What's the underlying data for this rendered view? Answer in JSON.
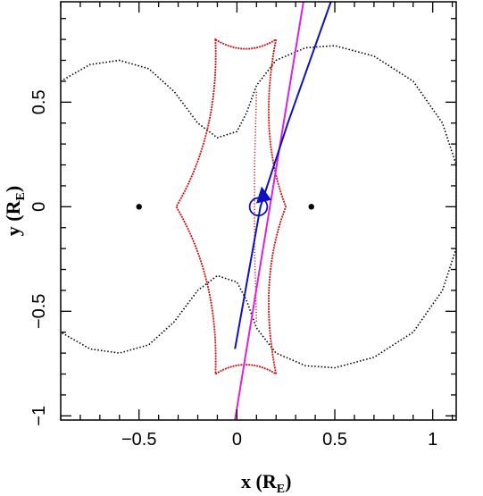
{
  "chart_data": {
    "type": "line",
    "title": "",
    "xlabel": "x (R_E)",
    "ylabel": "y (R_E)",
    "xlabel_parts": {
      "main": "x (R",
      "sub": "E",
      "close": ")"
    },
    "ylabel_parts": {
      "main": "y (R",
      "sub": "E",
      "close": ")"
    },
    "xlim": [
      -0.9,
      1.12
    ],
    "ylim": [
      -1.02,
      0.98
    ],
    "x_ticks": [
      -0.5,
      0,
      0.5,
      1
    ],
    "x_tick_labels": [
      "−0.5",
      "0",
      "0.5",
      "1"
    ],
    "y_ticks": [
      -1,
      -0.5,
      0,
      0.5
    ],
    "y_tick_labels": [
      "−1",
      "−0.5",
      "0",
      "0.5"
    ],
    "grid": false,
    "legend": "none",
    "lenses": [
      {
        "x": -0.5,
        "y": 0.0
      },
      {
        "x": 0.38,
        "y": 0.0
      }
    ],
    "source": {
      "x": 0.11,
      "y": 0.0,
      "radius": 0.045
    },
    "caustic": {
      "color": "#d01010",
      "cusps": [
        [
          -0.31,
          0.0
        ],
        [
          0.25,
          0.0
        ],
        [
          -0.11,
          0.8
        ],
        [
          0.2,
          0.8
        ],
        [
          -0.11,
          -0.8
        ],
        [
          0.2,
          -0.8
        ]
      ]
    },
    "critical_curve": {
      "color": "#000000",
      "outer_loop": [
        [
          -0.9,
          0.6
        ],
        [
          -0.75,
          0.68
        ],
        [
          -0.6,
          0.7
        ],
        [
          -0.45,
          0.66
        ],
        [
          -0.32,
          0.55
        ],
        [
          -0.2,
          0.4
        ],
        [
          -0.1,
          0.33
        ],
        [
          0.0,
          0.36
        ],
        [
          0.05,
          0.45
        ],
        [
          0.1,
          0.58
        ],
        [
          0.2,
          0.7
        ],
        [
          0.35,
          0.76
        ],
        [
          0.5,
          0.77
        ],
        [
          0.7,
          0.72
        ],
        [
          0.9,
          0.6
        ],
        [
          1.05,
          0.4
        ],
        [
          1.12,
          0.2
        ],
        [
          1.12,
          -0.2
        ],
        [
          1.05,
          -0.4
        ],
        [
          0.9,
          -0.6
        ],
        [
          0.7,
          -0.72
        ],
        [
          0.5,
          -0.77
        ],
        [
          0.35,
          -0.76
        ],
        [
          0.2,
          -0.7
        ],
        [
          0.1,
          -0.58
        ],
        [
          0.05,
          -0.45
        ],
        [
          0.0,
          -0.36
        ],
        [
          -0.1,
          -0.33
        ],
        [
          -0.2,
          -0.4
        ],
        [
          -0.32,
          -0.55
        ],
        [
          -0.45,
          -0.66
        ],
        [
          -0.6,
          -0.7
        ],
        [
          -0.75,
          -0.68
        ],
        [
          -0.9,
          -0.6
        ]
      ],
      "inner_vertical": [
        [
          0.1,
          0.55
        ],
        [
          0.09,
          0.2
        ],
        [
          0.09,
          -0.2
        ],
        [
          0.1,
          -0.55
        ]
      ]
    },
    "series": [
      {
        "name": "",
        "color": "#dd22dd",
        "x": [
          -0.01,
          0.34
        ],
        "y": [
          -1.02,
          0.98
        ]
      },
      {
        "name": "",
        "color": "#1010c0",
        "x": [
          -0.01,
          0.12,
          0.26,
          0.48
        ],
        "y": [
          -0.68,
          0.0,
          0.4,
          0.98
        ]
      }
    ],
    "arrow": {
      "x": 0.135,
      "y": 0.05,
      "color": "#1010c0"
    }
  }
}
